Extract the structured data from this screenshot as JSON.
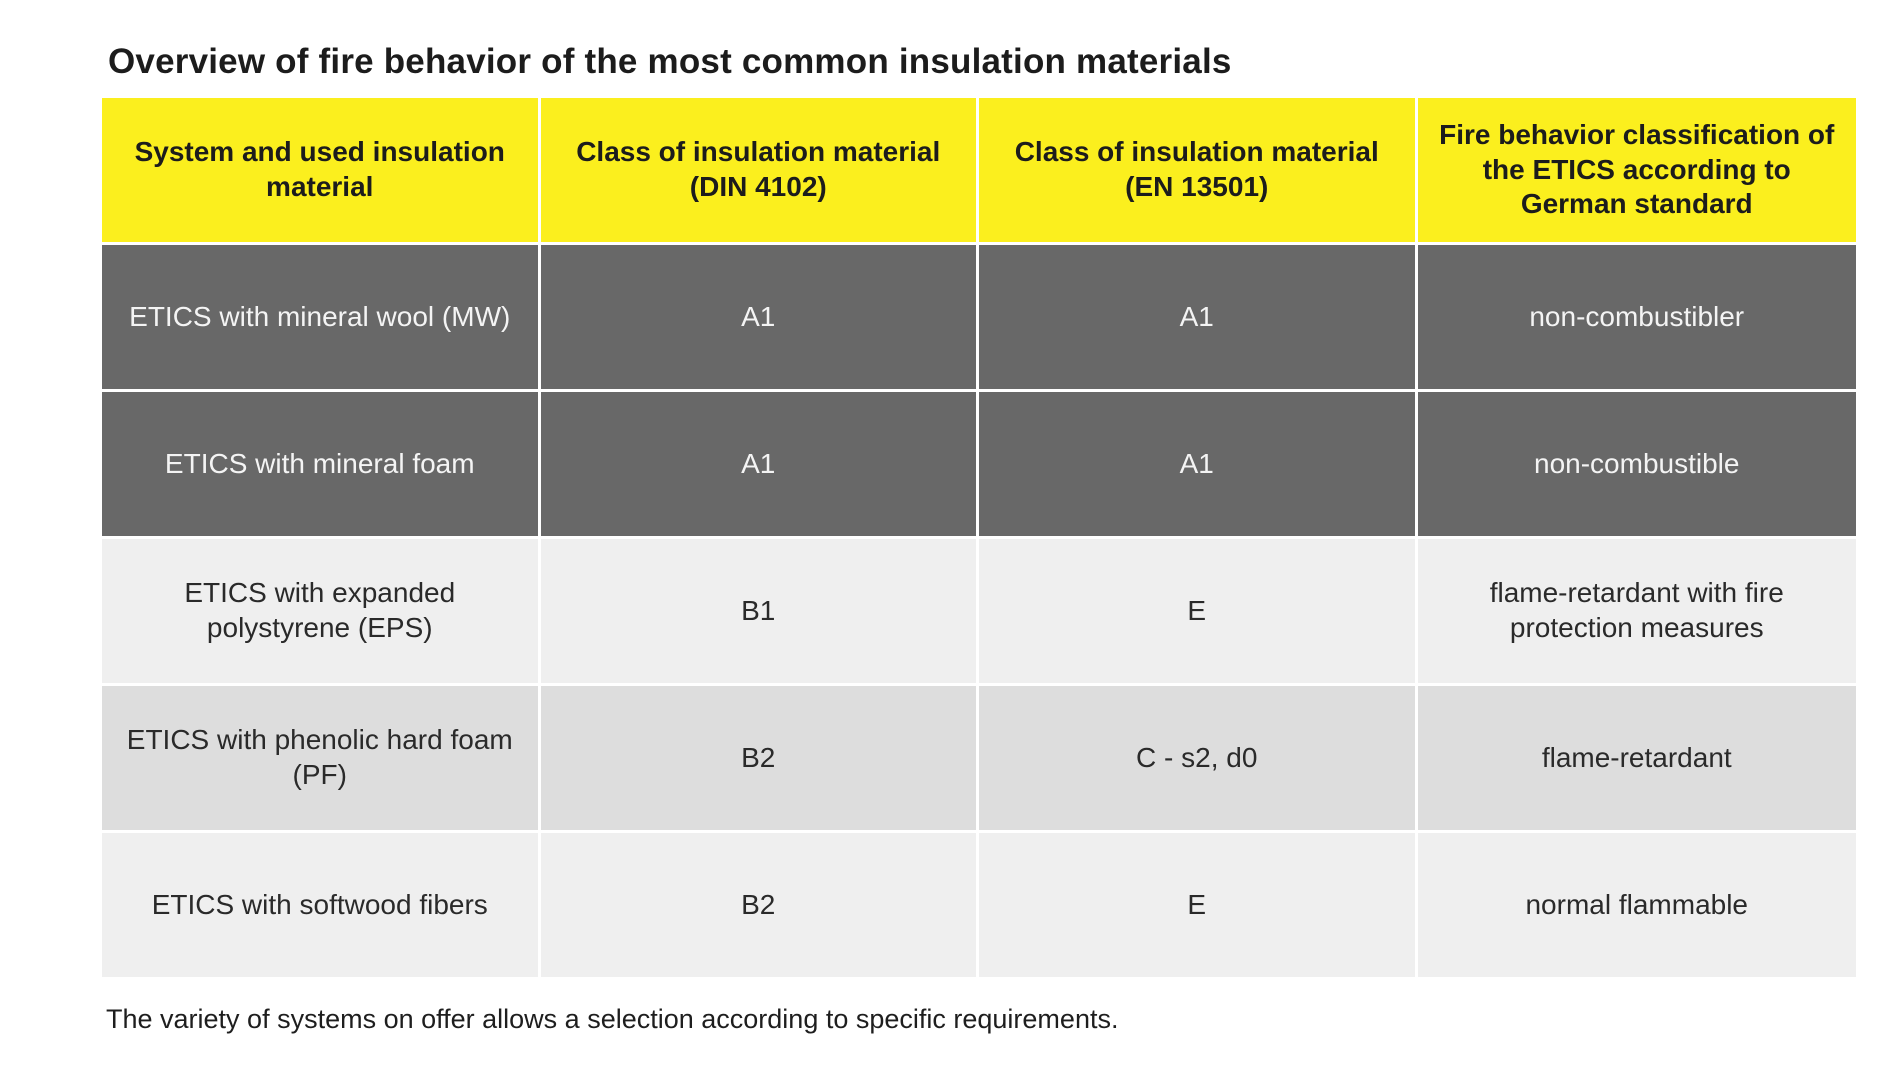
{
  "title": "Overview of fire behavior of the most common insulation materials",
  "table": {
    "headers": [
      "System and used insulation material",
      "Class of insulation material (DIN 4102)",
      "Class of insulation material (EN 13501)",
      "Fire behavior classification of the ETICS according to German standard"
    ],
    "rows": [
      [
        "ETICS with mineral wool (MW)",
        "A1",
        "A1",
        "non-combustibler"
      ],
      [
        "ETICS with mineral foam",
        "A1",
        "A1",
        "non-combustible"
      ],
      [
        "ETICS with expanded polystyrene (EPS)",
        "B1",
        "E",
        "flame-retardant with fire protection measures"
      ],
      [
        "ETICS with phenolic hard foam (PF)",
        "B2",
        "C - s2, d0",
        "flame-retardant"
      ],
      [
        "ETICS with softwood fibers",
        "B2",
        "E",
        "normal flammable"
      ]
    ]
  },
  "footnote": "The variety of systems on offer allows a selection according to specific requirements.",
  "colors": {
    "header_bg": "#fbef1e",
    "dark_row_bg": "#686868",
    "light_row_bg": "#efefef",
    "mid_row_bg": "#dddddd"
  }
}
